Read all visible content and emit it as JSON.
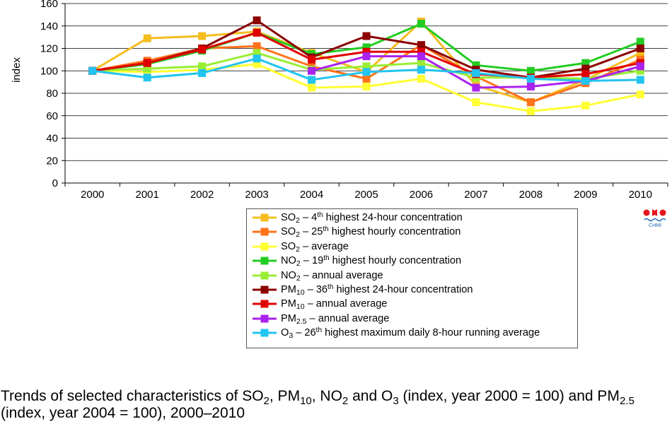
{
  "chart_data": {
    "type": "line",
    "ylabel": "index",
    "ylim": [
      0,
      160
    ],
    "yticks": [
      "0",
      "20",
      "40",
      "60",
      "80",
      "100",
      "120",
      "140",
      "160"
    ],
    "categories": [
      "2000",
      "2001",
      "2002",
      "2003",
      "2004",
      "2005",
      "2006",
      "2007",
      "2008",
      "2009",
      "2010"
    ],
    "grid": "horizontal",
    "legend_position": "bottom",
    "series": [
      {
        "name": "SO2 – 4th highest 24-hour concentration",
        "color": "#f5bd1f",
        "label": {
          "main": "SO",
          "sub": "2",
          "rest": "  – 4",
          "sup": "th",
          "tail": " highest 24-hour concentration"
        },
        "values": [
          100,
          129,
          131,
          135,
          116,
          99,
          144,
          87,
          72,
          92,
          116
        ]
      },
      {
        "name": "SO2 – 25th highest hourly concentration",
        "color": "#ff7219",
        "label": {
          "main": "SO",
          "sub": "2",
          "rest": "  – 25",
          "sup": "th",
          "tail": " highest hourly concentration"
        },
        "values": [
          100,
          109,
          120,
          122,
          104,
          93,
          123,
          95,
          72,
          89,
          110
        ]
      },
      {
        "name": "SO2 – average",
        "color": "#ffff33",
        "label": {
          "main": "SO",
          "sub": "2",
          "rest": "  – average",
          "sup": "",
          "tail": ""
        },
        "values": [
          100,
          99,
          101,
          106,
          85,
          86,
          93,
          72,
          64,
          69,
          79
        ]
      },
      {
        "name": "NO2 – 19th highest hourly concentration",
        "color": "#22cc22",
        "label": {
          "main": "NO",
          "sub": "2",
          "rest": " – 19",
          "sup": "th",
          "tail": " highest hourly concentration"
        },
        "values": [
          100,
          106,
          118,
          134,
          115,
          121,
          142,
          105,
          100,
          107,
          126
        ]
      },
      {
        "name": "NO2 – annual average",
        "color": "#99ee33",
        "label": {
          "main": "NO",
          "sub": "2",
          "rest": " – annual average",
          "sup": "",
          "tail": ""
        },
        "values": [
          100,
          102,
          104,
          116,
          101,
          104,
          107,
          94,
          94,
          93,
          100
        ]
      },
      {
        "name": "PM10 – 36th highest 24-hour concentration",
        "color": "#8b0000",
        "label": {
          "main": "PM",
          "sub": "10",
          "rest": " – 36",
          "sup": "th",
          "tail": " highest 24-hour concentration"
        },
        "values": [
          100,
          107,
          120,
          145,
          112,
          131,
          123,
          101,
          94,
          102,
          120
        ]
      },
      {
        "name": "PM10 – annual average",
        "color": "#e00000",
        "label": {
          "main": "PM",
          "sub": "10",
          "rest": " – annual average",
          "sup": "",
          "tail": ""
        },
        "values": [
          100,
          107,
          119,
          134,
          110,
          117,
          117,
          97,
          94,
          97,
          107
        ]
      },
      {
        "name": "PM2.5 – annual average",
        "color": "#aa22ee",
        "label": {
          "main": "PM",
          "sub": "2.5",
          "rest": " – annual average",
          "sup": "",
          "tail": ""
        },
        "values": [
          null,
          null,
          null,
          null,
          100,
          113,
          113,
          85,
          86,
          91,
          104
        ]
      },
      {
        "name": "O3 – 26th highest maximum daily 8-hour running average",
        "color": "#22c4f0",
        "label": {
          "main": "O",
          "sub": "3",
          "rest": " – 26",
          "sup": "th",
          "tail": " highest maximum daily 8-hour running average"
        },
        "values": [
          100,
          94,
          98,
          111,
          92,
          99,
          101,
          98,
          93,
          91,
          92
        ]
      }
    ]
  },
  "logo": {
    "text": "CHMI"
  },
  "caption": {
    "parts": [
      {
        "t": "Trends of selected characteristics of SO"
      },
      {
        "s": "2"
      },
      {
        "t": ", PM"
      },
      {
        "s": "10"
      },
      {
        "t": ", NO"
      },
      {
        "s": "2"
      },
      {
        "t": " and O"
      },
      {
        "s": "3"
      },
      {
        "t": " (index, year 2000 = 100) and PM"
      },
      {
        "s": "2.5"
      },
      {
        "t": " (index, year 2004 = 100), 2000–2010"
      }
    ]
  }
}
